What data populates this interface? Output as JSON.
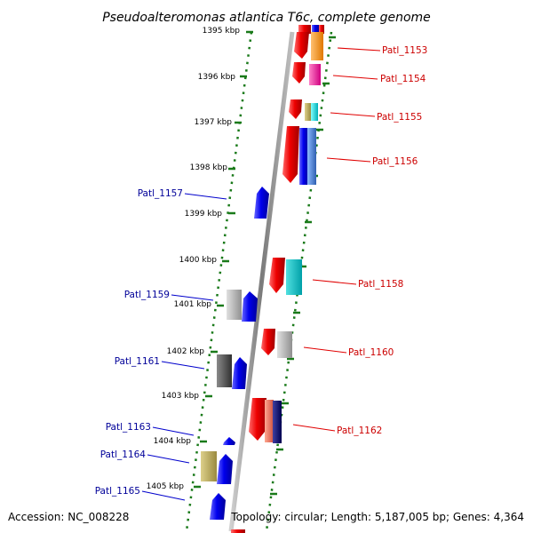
{
  "title": "Pseudoalteromonas atlantica T6c, complete genome",
  "footer": {
    "accession": "Accession: NC_008228",
    "summary": "Topology: circular; Length: 5,187,005 bp; Genes: 4,364"
  },
  "ticks": [
    "1395 kbp",
    "1396 kbp",
    "1397 kbp",
    "1398 kbp",
    "1399 kbp",
    "1400 kbp",
    "1401 kbp",
    "1402 kbp",
    "1403 kbp",
    "1404 kbp",
    "1405 kbp"
  ],
  "genes_right": [
    "Patl_1153",
    "Patl_1154",
    "Patl_1155",
    "Patl_1156",
    "Patl_1158",
    "Patl_1160",
    "Patl_1162"
  ],
  "genes_left": [
    "Patl_1157",
    "Patl_1159",
    "Patl_1161",
    "Patl_1163",
    "Patl_1164",
    "Patl_1165"
  ],
  "colors": {
    "cds_forward": "#e00000",
    "cds_reverse": "#0000ee",
    "label_forward": "#cc0000",
    "label_reverse": "#000099",
    "ruler": "#1a7a1a",
    "backbone": "#888888"
  }
}
